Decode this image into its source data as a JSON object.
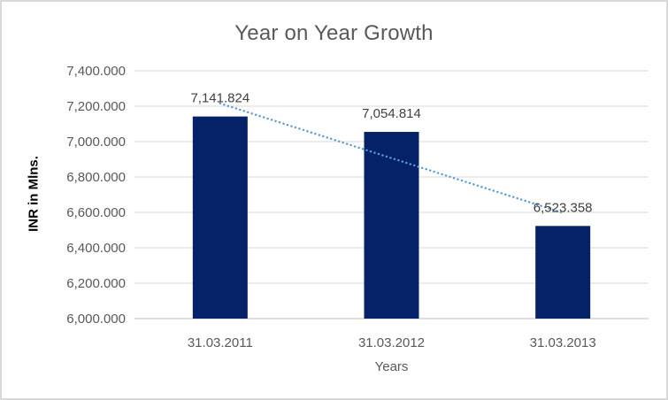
{
  "chart_data": {
    "type": "bar",
    "title": "Year on Year Growth",
    "xlabel": "Years",
    "ylabel": "INR in Mlns.",
    "categories": [
      "31.03.2011",
      "31.03.2012",
      "31.03.2013"
    ],
    "values": [
      7141.824,
      7054.814,
      6523.358
    ],
    "data_labels": [
      "7,141.824",
      "7,054.814",
      "6,523.358"
    ],
    "ylim": [
      6000,
      7400
    ],
    "ytick_step": 200,
    "yticks": [
      {
        "value": 7400,
        "label": "7,400.000"
      },
      {
        "value": 7200,
        "label": "7,200.000"
      },
      {
        "value": 7000,
        "label": "7,000.000"
      },
      {
        "value": 6800,
        "label": "6,800.000"
      },
      {
        "value": 6600,
        "label": "6,600.000"
      },
      {
        "value": 6400,
        "label": "6,400.000"
      },
      {
        "value": 6200,
        "label": "6,200.000"
      },
      {
        "value": 6000,
        "label": "6,000.000"
      }
    ],
    "grid": true,
    "legend": "none",
    "bar_color": "#052268",
    "trendline": {
      "type": "linear",
      "style": "dotted",
      "color": "#5B9BD5",
      "start_value": 7215.9,
      "end_value": 6597.4
    },
    "colors": {
      "title": "#595959",
      "tick_labels": "#595959",
      "data_labels": "#404040",
      "gridline": "#d9d9d9",
      "axis_line": "#bfbfbf",
      "ylabel": "#000000",
      "xlabel": "#595959",
      "background": "#ffffff",
      "border": "#d9d9d9"
    }
  }
}
